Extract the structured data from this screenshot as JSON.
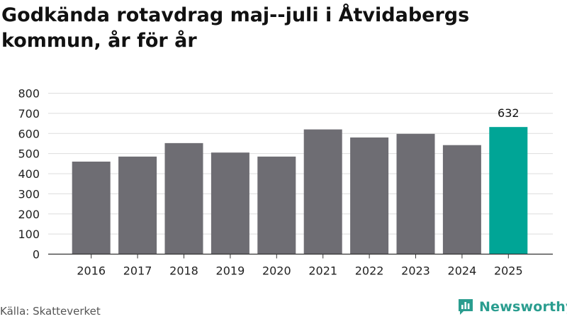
{
  "title": "Godkända rotavdrag maj--juli i Åtvidabergs kommun, år för år",
  "source": "Källa: Skatteverket",
  "brand": {
    "name": "Newsworthy",
    "icon": "newsworthy-logo-icon",
    "color": "#2a9d8f"
  },
  "colors": {
    "bar": "#6e6d73",
    "highlight": "#00a596",
    "grid": "#dddddd",
    "axis": "#333333"
  },
  "chart_data": {
    "type": "bar",
    "title": "Godkända rotavdrag maj--juli i Åtvidabergs kommun, år för år",
    "xlabel": "",
    "ylabel": "",
    "categories": [
      "2016",
      "2017",
      "2018",
      "2019",
      "2020",
      "2021",
      "2022",
      "2023",
      "2024",
      "2025"
    ],
    "values": [
      460,
      485,
      552,
      505,
      485,
      620,
      580,
      598,
      542,
      632
    ],
    "ylim": [
      0,
      800
    ],
    "yticks": [
      0,
      100,
      200,
      300,
      400,
      500,
      600,
      700,
      800
    ],
    "highlight_index": 9,
    "data_labels": [
      {
        "index": 9,
        "text": "632"
      }
    ],
    "grid": true,
    "legend": "none"
  }
}
